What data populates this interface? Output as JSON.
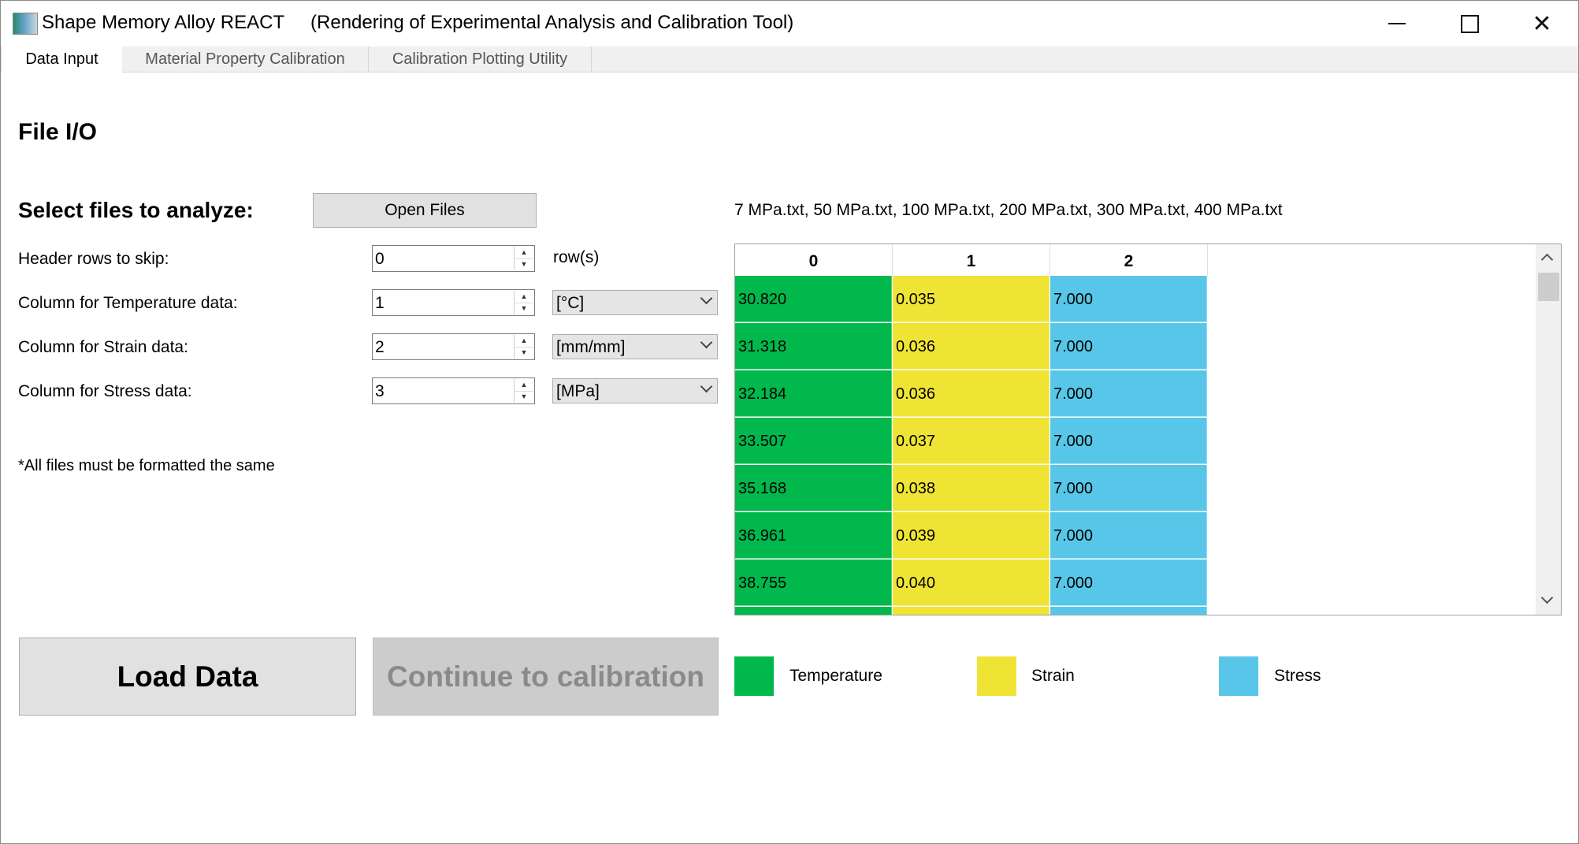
{
  "window": {
    "title": "Shape Memory Alloy REACT     (Rendering of Experimental Analysis and Calibration Tool)"
  },
  "tabs": [
    {
      "label": "Data Input",
      "active": true
    },
    {
      "label": "Material Property Calibration",
      "active": false
    },
    {
      "label": "Calibration Plotting Utility",
      "active": false
    }
  ],
  "file_io": {
    "heading": "File I/O",
    "select_label": "Select files to analyze:",
    "open_files_label": "Open Files",
    "files_list": "7 MPa.txt, 50 MPa.txt, 100 MPa.txt, 200 MPa.txt, 300 MPa.txt, 400 MPa.txt",
    "header_rows": {
      "label": "Header rows to skip:",
      "value": "0",
      "unit": "row(s)"
    },
    "temperature": {
      "label": "Column for Temperature data:",
      "value": "1",
      "unit": "[°C]"
    },
    "strain": {
      "label": "Column for Strain data:",
      "value": "2",
      "unit": "[mm/mm]"
    },
    "stress": {
      "label": "Column for Stress data:",
      "value": "3",
      "unit": "[MPa]"
    },
    "note": "*All files must be formatted the same",
    "load_label": "Load Data",
    "continue_label": "Continue to calibration"
  },
  "table": {
    "headers": [
      "0",
      "1",
      "2"
    ],
    "rows": [
      [
        "30.820",
        "0.035",
        "7.000"
      ],
      [
        "31.318",
        "0.036",
        "7.000"
      ],
      [
        "32.184",
        "0.036",
        "7.000"
      ],
      [
        "33.507",
        "0.037",
        "7.000"
      ],
      [
        "35.168",
        "0.038",
        "7.000"
      ],
      [
        "36.961",
        "0.039",
        "7.000"
      ],
      [
        "38.755",
        "0.040",
        "7.000"
      ],
      [
        "",
        "",
        ""
      ]
    ]
  },
  "legend": [
    {
      "label": "Temperature",
      "color": "#00b84c"
    },
    {
      "label": "Strain",
      "color": "#efe433"
    },
    {
      "label": "Stress",
      "color": "#58c6e9"
    }
  ]
}
